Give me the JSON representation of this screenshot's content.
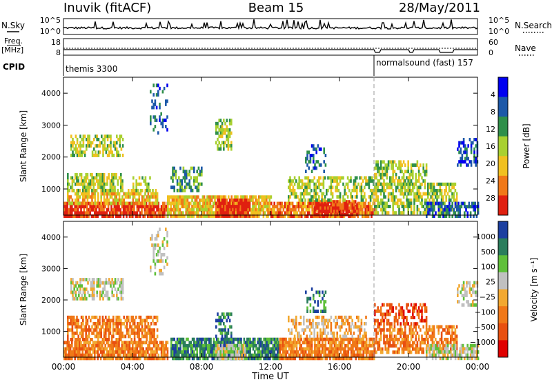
{
  "header": {
    "station": "Inuvik  (fitACF)",
    "beam": "Beam 15",
    "date": "28/May/2011"
  },
  "top_panels": {
    "nsky_label": "N.Sky",
    "nsearch_label": "N.Search",
    "nsky_ticks": [
      "10^5",
      "10^0"
    ],
    "nsearch_ticks": [
      "10^5",
      "10^0"
    ],
    "freq_label_1": "Freq.",
    "freq_label_2": "[MHz]",
    "freq_ticks": [
      "18",
      "8"
    ],
    "nave_label": "Nave",
    "nave_ticks": [
      "60",
      "0"
    ],
    "cpid_label": "CPID",
    "cpid_segments": [
      {
        "name": "themis 3300",
        "start_hour": 0
      },
      {
        "name": "normalsound (fast)  157",
        "start_hour": 18
      }
    ],
    "mode_change_hour": 18
  },
  "chart_data": [
    {
      "type": "heatmap",
      "ylabel": "Slant Range [km]",
      "x_ticks": [
        "00:00",
        "04:00",
        "08:00",
        "12:00",
        "16:00",
        "20:00",
        "00:00"
      ],
      "xlim_hours": [
        0,
        24
      ],
      "y_ticks": [
        "1000",
        "2000",
        "3000",
        "4000"
      ],
      "ylim": [
        180,
        4500
      ],
      "colorbar": {
        "label": "Power [dB]",
        "ticks": [
          "4",
          "8",
          "12",
          "16",
          "20",
          "24",
          "28"
        ],
        "range": [
          0,
          30
        ],
        "colors": [
          "#0000f0",
          "#1c58a8",
          "#2f8f4a",
          "#a8d030",
          "#f0c020",
          "#f07818",
          "#e02010"
        ]
      },
      "regions": [
        {
          "t0": 0.0,
          "t1": 6.0,
          "r0": 180,
          "r1": 600,
          "level": 6,
          "density": 0.85
        },
        {
          "t0": 0.2,
          "t1": 5.4,
          "r0": 600,
          "r1": 1000,
          "level": 4,
          "density": 0.7
        },
        {
          "t0": 0.2,
          "t1": 3.4,
          "r0": 1000,
          "r1": 1500,
          "level": 3,
          "density": 0.65
        },
        {
          "t0": 0.4,
          "t1": 3.4,
          "r0": 2100,
          "r1": 2700,
          "level": 3,
          "density": 0.55
        },
        {
          "t0": 4.0,
          "t1": 5.0,
          "r0": 1000,
          "r1": 1400,
          "level": 3,
          "density": 0.5
        },
        {
          "t0": 5.0,
          "t1": 6.0,
          "r0": 2800,
          "r1": 4300,
          "level": 1,
          "density": 0.25
        },
        {
          "t0": 6.0,
          "t1": 12.0,
          "r0": 180,
          "r1": 800,
          "level": 4,
          "density": 0.85
        },
        {
          "t0": 8.8,
          "t1": 10.8,
          "r0": 180,
          "r1": 700,
          "level": 6,
          "density": 0.85
        },
        {
          "t0": 6.2,
          "t1": 8.0,
          "r0": 1000,
          "r1": 1700,
          "level": 2,
          "density": 0.45
        },
        {
          "t0": 8.8,
          "t1": 9.7,
          "r0": 2300,
          "r1": 3200,
          "level": 3,
          "density": 0.5
        },
        {
          "t0": 12.0,
          "t1": 18.0,
          "r0": 180,
          "r1": 600,
          "level": 5,
          "density": 0.85
        },
        {
          "t0": 14.5,
          "t1": 17.0,
          "r0": 180,
          "r1": 650,
          "level": 6,
          "density": 0.9
        },
        {
          "t0": 13.0,
          "t1": 18.0,
          "r0": 700,
          "r1": 1400,
          "level": 3,
          "density": 0.5
        },
        {
          "t0": 14.0,
          "t1": 15.2,
          "r0": 1600,
          "r1": 2400,
          "level": 1,
          "density": 0.3
        },
        {
          "t0": 18.0,
          "t1": 22.8,
          "r0": 300,
          "r1": 1200,
          "level": 3,
          "density": 0.6
        },
        {
          "t0": 18.0,
          "t1": 21.0,
          "r0": 1200,
          "r1": 1900,
          "level": 3,
          "density": 0.55
        },
        {
          "t0": 21.0,
          "t1": 24.0,
          "r0": 180,
          "r1": 600,
          "level": 1,
          "density": 0.6
        },
        {
          "t0": 22.8,
          "t1": 24.0,
          "r0": 1800,
          "r1": 2600,
          "level": 1,
          "density": 0.5
        }
      ]
    },
    {
      "type": "heatmap",
      "ylabel": "Slant Range [km]",
      "xlabel": "Time UT",
      "x_ticks": [
        "00:00",
        "04:00",
        "08:00",
        "12:00",
        "16:00",
        "20:00",
        "00:00"
      ],
      "xlim_hours": [
        0,
        24
      ],
      "y_ticks": [
        "1000",
        "2000",
        "3000",
        "4000"
      ],
      "ylim": [
        180,
        4500
      ],
      "colorbar": {
        "label": "Velocity  [m s⁻¹]",
        "ticks": [
          "1000",
          "500",
          "100",
          "25",
          "−25",
          "−100",
          "−500",
          "−1000"
        ],
        "range": [
          -1000,
          1000
        ],
        "colors": [
          "#1c3fa0",
          "#2a7d5c",
          "#5fbf3a",
          "#c0c0c0",
          "#f2a830",
          "#f07818",
          "#e85010",
          "#e00000"
        ]
      },
      "regions": [
        {
          "t0": 0.0,
          "t1": 6.0,
          "r0": 180,
          "r1": 700,
          "level": 5,
          "density": 0.85
        },
        {
          "t0": 0.2,
          "t1": 5.4,
          "r0": 700,
          "r1": 1500,
          "level": 5,
          "density": 0.65
        },
        {
          "t0": 0.4,
          "t1": 3.4,
          "r0": 2000,
          "r1": 2700,
          "level": 3,
          "density": 0.55
        },
        {
          "t0": 5.0,
          "t1": 6.0,
          "r0": 2800,
          "r1": 4300,
          "level": 3,
          "density": 0.25
        },
        {
          "t0": 6.2,
          "t1": 12.5,
          "r0": 180,
          "r1": 800,
          "level": 1,
          "density": 0.85
        },
        {
          "t0": 8.8,
          "t1": 10.5,
          "r0": 180,
          "r1": 600,
          "level": 3,
          "density": 0.8
        },
        {
          "t0": 8.8,
          "t1": 9.7,
          "r0": 800,
          "r1": 1600,
          "level": 1,
          "density": 0.5
        },
        {
          "t0": 12.5,
          "t1": 18.0,
          "r0": 180,
          "r1": 800,
          "level": 5,
          "density": 0.85
        },
        {
          "t0": 13.0,
          "t1": 17.5,
          "r0": 800,
          "r1": 1500,
          "level": 4,
          "density": 0.5
        },
        {
          "t0": 14.0,
          "t1": 15.2,
          "r0": 1600,
          "r1": 2400,
          "level": 1,
          "density": 0.35
        },
        {
          "t0": 18.0,
          "t1": 22.8,
          "r0": 300,
          "r1": 1200,
          "level": 5,
          "density": 0.6
        },
        {
          "t0": 18.0,
          "t1": 21.0,
          "r0": 1200,
          "r1": 1900,
          "level": 6,
          "density": 0.55
        },
        {
          "t0": 21.0,
          "t1": 24.0,
          "r0": 180,
          "r1": 600,
          "level": 3,
          "density": 0.6
        },
        {
          "t0": 22.8,
          "t1": 24.0,
          "r0": 1800,
          "r1": 2600,
          "level": 3,
          "density": 0.5
        }
      ]
    }
  ]
}
